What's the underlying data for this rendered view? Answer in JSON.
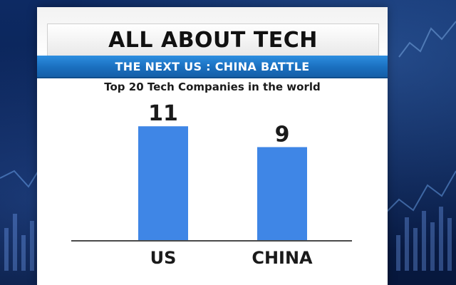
{
  "header": {
    "title": "ALL ABOUT TECH",
    "subtitle": "THE NEXT US : CHINA BATTLE"
  },
  "colors": {
    "bar": "#3f86e6",
    "banner": "#1a6fbf"
  },
  "chart_data": {
    "type": "bar",
    "title": "Top 20 Tech Companies in the world",
    "categories": [
      "US",
      "CHINA"
    ],
    "values": [
      11,
      9
    ],
    "ylim": [
      0,
      13
    ],
    "xlabel": "",
    "ylabel": "",
    "grid": false,
    "legend": "none"
  }
}
